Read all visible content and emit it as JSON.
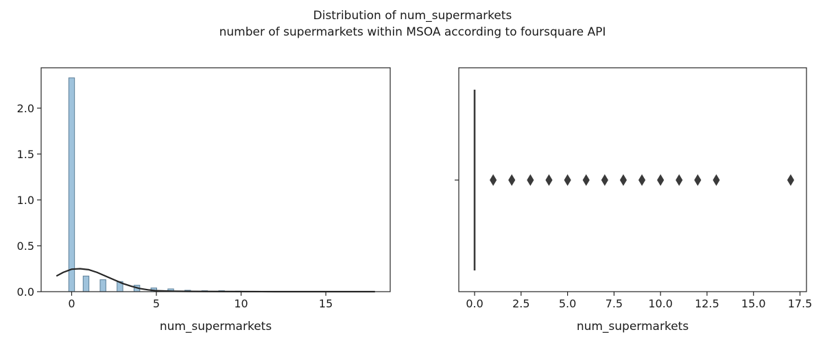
{
  "figure": {
    "title": "Distribution of num_supermarkets",
    "subtitle": "number of supermarkets within MSOA according to foursquare API"
  },
  "chart_data": [
    {
      "type": "bar",
      "subtype": "histogram-with-kde",
      "xlabel": "num_supermarkets",
      "ylabel": "",
      "xlim": [
        -1.8,
        18.8
      ],
      "ylim": [
        0,
        2.44
      ],
      "xticks": [
        0,
        5,
        10,
        15
      ],
      "yticks": [
        0.0,
        0.5,
        1.0,
        1.5,
        2.0
      ],
      "xtick_labels": [
        "0",
        "5",
        "10",
        "15"
      ],
      "ytick_labels": [
        "0.0",
        "0.5",
        "1.0",
        "1.5",
        "2.0"
      ],
      "bin_width": 0.34,
      "bars": [
        {
          "x": 0,
          "value": 2.33
        },
        {
          "x": 0.85,
          "value": 0.17
        },
        {
          "x": 1.85,
          "value": 0.13
        },
        {
          "x": 2.85,
          "value": 0.11
        },
        {
          "x": 3.85,
          "value": 0.07
        },
        {
          "x": 4.85,
          "value": 0.04
        },
        {
          "x": 5.85,
          "value": 0.03
        },
        {
          "x": 6.85,
          "value": 0.015
        },
        {
          "x": 7.85,
          "value": 0.01
        },
        {
          "x": 8.85,
          "value": 0.01
        },
        {
          "x": 9.85,
          "value": 0.005
        },
        {
          "x": 10.85,
          "value": 0.004
        },
        {
          "x": 11.85,
          "value": 0.003
        },
        {
          "x": 12.85,
          "value": 0.003
        },
        {
          "x": 16.85,
          "value": 0.002
        }
      ],
      "kde": {
        "x": [
          -0.9,
          -0.5,
          0,
          0.5,
          1,
          1.5,
          2,
          2.5,
          3,
          3.5,
          4,
          4.5,
          5,
          6,
          7,
          8,
          10,
          12,
          14,
          16,
          17.9
        ],
        "y": [
          0.17,
          0.21,
          0.245,
          0.25,
          0.24,
          0.21,
          0.17,
          0.13,
          0.09,
          0.06,
          0.035,
          0.02,
          0.01,
          0.005,
          0.003,
          0.002,
          0.001,
          0.0,
          0.0,
          0.0,
          0.0
        ]
      },
      "colors": {
        "bar_fill": "#9fc3dc",
        "bar_edge": "#5a7d96",
        "kde": "#262626"
      }
    },
    {
      "type": "scatter",
      "subtype": "boxplot",
      "xlabel": "num_supermarkets",
      "ylabel": "",
      "xlim": [
        -0.85,
        17.85
      ],
      "xticks": [
        0.0,
        2.5,
        5.0,
        7.5,
        10.0,
        12.5,
        15.0,
        17.5
      ],
      "xtick_labels": [
        "0.0",
        "2.5",
        "5.0",
        "7.5",
        "10.0",
        "12.5",
        "15.0",
        "17.5"
      ],
      "box": {
        "min": 0,
        "q1": 0,
        "median": 0,
        "q3": 0,
        "max": 0
      },
      "outliers": [
        1,
        2,
        3,
        4,
        5,
        6,
        7,
        8,
        9,
        10,
        11,
        12,
        13,
        17
      ],
      "colors": {
        "box": "#3a3a3a",
        "outlier": "#3a3a3a"
      }
    }
  ]
}
